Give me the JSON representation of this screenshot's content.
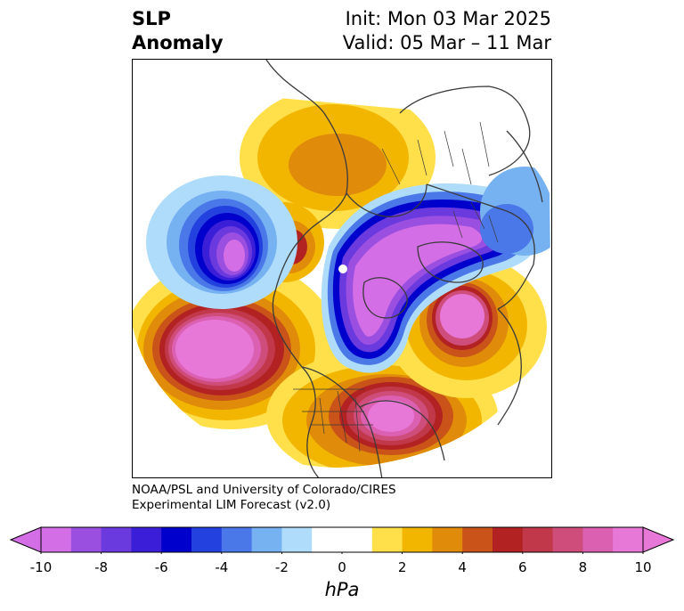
{
  "title": {
    "left_line1": "SLP",
    "left_line2": "Anomaly",
    "right_line1": "Init: Mon 03 Mar 2025",
    "right_line2": "Valid: 05 Mar – 11 Mar"
  },
  "credit": {
    "line1": "NOAA/PSL and University of Colorado/CIRES",
    "line2": "Experimental LIM Forecast (v2.0)"
  },
  "colorbar": {
    "units": "hPa",
    "ticks": [
      "-10",
      "-8",
      "-6",
      "-4",
      "-2",
      "0",
      "2",
      "4",
      "6",
      "8",
      "10"
    ],
    "levels": [
      -10,
      -9,
      -8,
      -7,
      -6,
      -5,
      -4,
      -3,
      -2,
      -1,
      1,
      2,
      3,
      4,
      5,
      6,
      7,
      8,
      9,
      10
    ],
    "colors": [
      "#d46ee6",
      "#9b4fe0",
      "#6b3adf",
      "#3b1fd8",
      "#0000cc",
      "#2341de",
      "#4a78e8",
      "#76b1f2",
      "#aedcfa",
      "#ffffff",
      "#ffffff",
      "#ffe04a",
      "#f2b600",
      "#e08c0a",
      "#c95318",
      "#b22222",
      "#c0384a",
      "#cf4d7a",
      "#dc60b2",
      "#e878d8"
    ]
  },
  "map": {
    "anomalies": [
      {
        "name": "North Pacific low",
        "sign": "negative"
      },
      {
        "name": "Arctic / Greenland low",
        "sign": "negative"
      },
      {
        "name": "NE Pacific high",
        "sign": "positive"
      },
      {
        "name": "Eastern US / Atlantic high",
        "sign": "positive"
      },
      {
        "name": "Europe high",
        "sign": "positive"
      },
      {
        "name": "Siberia high",
        "sign": "positive"
      }
    ]
  }
}
